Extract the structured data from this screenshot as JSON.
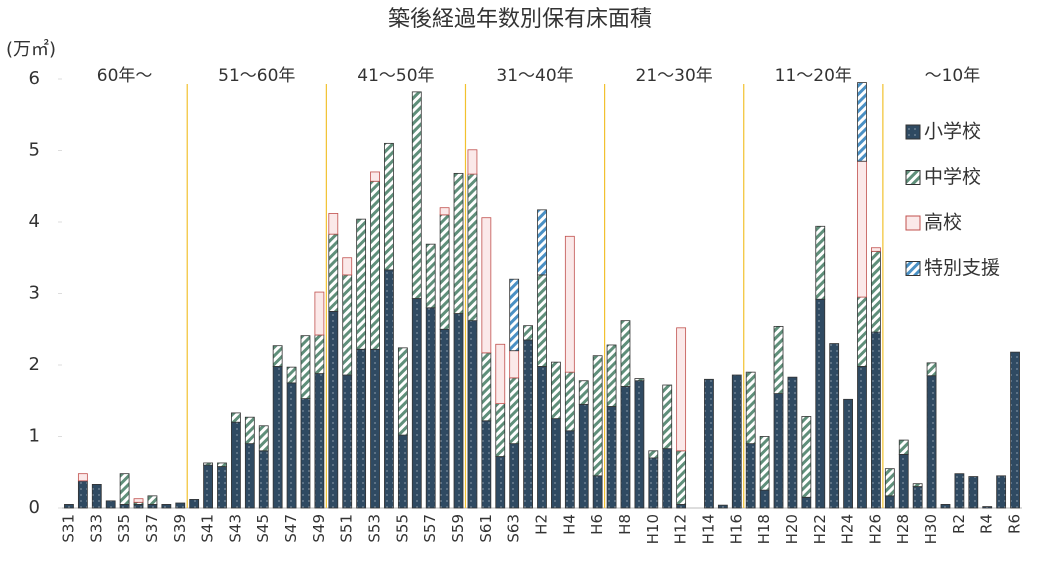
{
  "chart_data": {
    "type": "stacked-bar",
    "title": "築後経過年数別保有床面積",
    "y_label": "(万㎡)",
    "categories": [
      "S31",
      null,
      "S33",
      null,
      "S35",
      null,
      "S37",
      null,
      "S39",
      null,
      "S41",
      null,
      "S43",
      null,
      "S45",
      null,
      "S47",
      null,
      "S49",
      null,
      "S51",
      null,
      "S53",
      null,
      "S55",
      null,
      "S57",
      null,
      "S59",
      null,
      "S61",
      null,
      "S63",
      null,
      "H2",
      null,
      "H4",
      null,
      "H6",
      null,
      "H8",
      null,
      "H10",
      null,
      "H12",
      null,
      "H14",
      null,
      "H16",
      null,
      "H18",
      null,
      "H20",
      null,
      "H22",
      null,
      "H24",
      null,
      "H26",
      null,
      "H28",
      null,
      "H30",
      null,
      "R2",
      null,
      "R4",
      null,
      "R6"
    ],
    "series": [
      {
        "name": "小学校",
        "color": "#2f4a62",
        "values": [
          0.05,
          0.38,
          0.33,
          0.1,
          0.05,
          0.05,
          0.05,
          0.05,
          0.07,
          0.12,
          0.6,
          0.58,
          1.2,
          0.9,
          0.8,
          1.98,
          1.75,
          1.53,
          1.88,
          2.75,
          1.86,
          2.22,
          2.22,
          3.33,
          1.02,
          2.93,
          2.8,
          2.5,
          2.72,
          2.62,
          1.22,
          0.72,
          0.9,
          2.35,
          1.98,
          1.25,
          1.08,
          1.45,
          0.45,
          1.42,
          1.7,
          1.78,
          0.7,
          0.83,
          0.05,
          0,
          1.8,
          0.04,
          1.86,
          0.9,
          0.25,
          1.6,
          1.83,
          0.15,
          2.92,
          2.3,
          1.52,
          1.98,
          2.46,
          0.17,
          0.75,
          0.3,
          1.85,
          0.05,
          0.48,
          0.44,
          0.02,
          0.45,
          2.18
        ]
      },
      {
        "name": "中学校",
        "color": "#5f8f7a",
        "values": [
          0,
          0,
          0,
          0,
          0.43,
          0.03,
          0.12,
          0,
          0,
          0,
          0.03,
          0.05,
          0.13,
          0.37,
          0.35,
          0.29,
          0.22,
          0.88,
          0.54,
          1.08,
          1.4,
          1.82,
          2.35,
          1.77,
          1.22,
          2.89,
          0.89,
          1.6,
          1.96,
          2.05,
          0.95,
          0.74,
          0.92,
          0.2,
          1.28,
          0.79,
          0.82,
          0.33,
          1.68,
          0.86,
          0.92,
          0.03,
          0.1,
          0.89,
          0.75,
          0,
          0,
          0,
          0,
          1.0,
          0.75,
          0.94,
          0,
          1.13,
          1.02,
          0,
          0,
          0.97,
          1.13,
          0.38,
          0.2,
          0.04,
          0.18,
          0,
          0,
          0,
          0,
          0,
          0
        ]
      },
      {
        "name": "高校",
        "color": "#c0504d",
        "values": [
          0,
          0.1,
          0,
          0,
          0,
          0.05,
          0,
          0,
          0,
          0,
          0,
          0,
          0,
          0,
          0,
          0,
          0,
          0,
          0.6,
          0.29,
          0.24,
          0,
          0.13,
          0,
          0,
          0,
          0,
          0.1,
          0,
          0.34,
          1.89,
          0.83,
          0.38,
          0,
          0,
          0,
          1.9,
          0,
          0,
          0,
          0,
          0,
          0,
          0,
          1.72,
          0,
          0,
          0,
          0,
          0,
          0,
          0,
          0,
          0,
          0,
          0,
          0,
          1.9,
          0.05,
          0,
          0,
          0,
          0,
          0,
          0,
          0,
          0,
          0,
          0
        ]
      },
      {
        "name": "特別支援",
        "color": "#4a90c4",
        "values": [
          0,
          0,
          0,
          0,
          0,
          0,
          0,
          0,
          0,
          0,
          0,
          0,
          0,
          0,
          0,
          0,
          0,
          0,
          0,
          0,
          0,
          0,
          0,
          0,
          0,
          0,
          0,
          0,
          0,
          0,
          0,
          0,
          1.0,
          0,
          0.91,
          0,
          0,
          0,
          0,
          0,
          0,
          0,
          0,
          0,
          0,
          0,
          0,
          0,
          0,
          0,
          0,
          0,
          0,
          0,
          0,
          0,
          0,
          1.1,
          0,
          0,
          0,
          0,
          0,
          0,
          0,
          0,
          0,
          0,
          0
        ]
      }
    ],
    "periods": [
      "60年〜",
      "51〜60年",
      "41〜50年",
      "31〜40年",
      "21〜30年",
      "11〜20年",
      "〜10年"
    ],
    "period_color": "#f2c12e",
    "ylim": [
      0,
      6
    ],
    "yticks": [
      0,
      1,
      2,
      3,
      4,
      5,
      6
    ]
  }
}
